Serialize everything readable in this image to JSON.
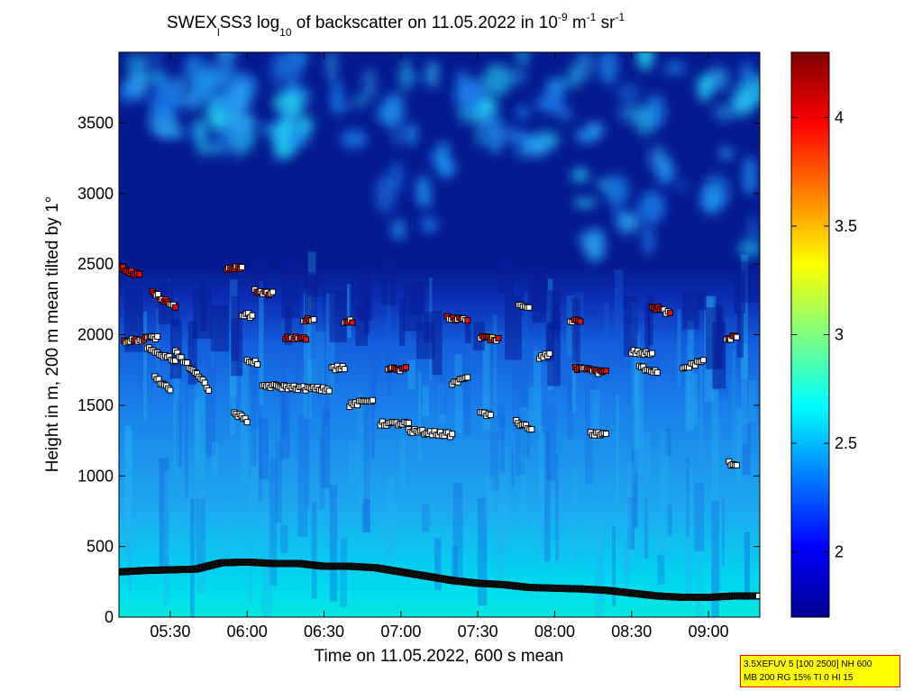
{
  "chart_data": {
    "type": "heatmap",
    "title": {
      "prefix": "SWEX",
      "sub1": "l",
      "mid": "SS3 log",
      "sub2": "10",
      "suffix": " of backscatter on 11.05.2022 in 10",
      "sup1": "-9",
      "unit1": " m",
      "sup2": "-1",
      "unit2": " sr",
      "sup3": "-1"
    },
    "xlabel": "Time on 11.05.2022, 600 s mean",
    "ylabel": "Height in m, 200 m mean tilted by 1°",
    "x_range_minutes": [
      310,
      560
    ],
    "x_ticks": [
      {
        "minute": 330,
        "label": "05:30"
      },
      {
        "minute": 360,
        "label": "06:00"
      },
      {
        "minute": 390,
        "label": "06:30"
      },
      {
        "minute": 420,
        "label": "07:00"
      },
      {
        "minute": 450,
        "label": "07:30"
      },
      {
        "minute": 480,
        "label": "08:00"
      },
      {
        "minute": 510,
        "label": "08:30"
      },
      {
        "minute": 540,
        "label": "09:00"
      }
    ],
    "y_range_m": [
      0,
      4000
    ],
    "y_ticks": [
      0,
      500,
      1000,
      1500,
      2000,
      2500,
      3000,
      3500
    ],
    "colorbar": {
      "range": [
        1.7,
        4.3
      ],
      "ticks": [
        2,
        2.5,
        3,
        3.5,
        4
      ]
    },
    "boundary_layer_top_m": [
      [
        310,
        320
      ],
      [
        320,
        330
      ],
      [
        330,
        335
      ],
      [
        340,
        340
      ],
      [
        350,
        385
      ],
      [
        360,
        390
      ],
      [
        370,
        380
      ],
      [
        380,
        380
      ],
      [
        390,
        360
      ],
      [
        400,
        360
      ],
      [
        410,
        350
      ],
      [
        420,
        320
      ],
      [
        430,
        290
      ],
      [
        440,
        260
      ],
      [
        450,
        240
      ],
      [
        460,
        230
      ],
      [
        470,
        210
      ],
      [
        480,
        205
      ],
      [
        490,
        200
      ],
      [
        500,
        190
      ],
      [
        510,
        170
      ],
      [
        520,
        150
      ],
      [
        530,
        140
      ],
      [
        540,
        140
      ],
      [
        550,
        150
      ],
      [
        560,
        150
      ]
    ],
    "layer_segments": [
      {
        "t": [
          310,
          318
        ],
        "h": [
          2480,
          2420
        ],
        "mix": "red"
      },
      {
        "t": [
          312,
          325
        ],
        "h": [
          1950,
          1980
        ],
        "mix": "mixed"
      },
      {
        "t": [
          321,
          332
        ],
        "h": [
          1900,
          1820
        ],
        "mix": "white"
      },
      {
        "t": [
          323,
          332
        ],
        "h": [
          2300,
          2190
        ],
        "mix": "mixed"
      },
      {
        "t": [
          324,
          330
        ],
        "h": [
          1700,
          1600
        ],
        "mix": "white"
      },
      {
        "t": [
          332,
          345
        ],
        "h": [
          1880,
          1620
        ],
        "mix": "white"
      },
      {
        "t": [
          352,
          358
        ],
        "h": [
          2470,
          2480
        ],
        "mix": "red"
      },
      {
        "t": [
          355,
          360
        ],
        "h": [
          1450,
          1390
        ],
        "mix": "white"
      },
      {
        "t": [
          358,
          362
        ],
        "h": [
          2150,
          2130
        ],
        "mix": "white"
      },
      {
        "t": [
          360,
          364
        ],
        "h": [
          1820,
          1800
        ],
        "mix": "white"
      },
      {
        "t": [
          363,
          370
        ],
        "h": [
          2310,
          2290
        ],
        "mix": "red"
      },
      {
        "t": [
          366,
          392
        ],
        "h": [
          1640,
          1610
        ],
        "mix": "white"
      },
      {
        "t": [
          375,
          383
        ],
        "h": [
          1970,
          1980
        ],
        "mix": "red"
      },
      {
        "t": [
          382,
          386
        ],
        "h": [
          2110,
          2100
        ],
        "mix": "red"
      },
      {
        "t": [
          393,
          398
        ],
        "h": [
          1760,
          1770
        ],
        "mix": "white"
      },
      {
        "t": [
          398,
          401
        ],
        "h": [
          2100,
          2100
        ],
        "mix": "red"
      },
      {
        "t": [
          400,
          409
        ],
        "h": [
          1500,
          1540
        ],
        "mix": "white"
      },
      {
        "t": [
          412,
          423
        ],
        "h": [
          1370,
          1370
        ],
        "mix": "white"
      },
      {
        "t": [
          415,
          422
        ],
        "h": [
          1750,
          1760
        ],
        "mix": "red"
      },
      {
        "t": [
          423,
          440
        ],
        "h": [
          1320,
          1290
        ],
        "mix": "white"
      },
      {
        "t": [
          438,
          446
        ],
        "h": [
          2120,
          2100
        ],
        "mix": "red"
      },
      {
        "t": [
          440,
          446
        ],
        "h": [
          1660,
          1690
        ],
        "mix": "white"
      },
      {
        "t": [
          451,
          458
        ],
        "h": [
          1980,
          1960
        ],
        "mix": "mixed"
      },
      {
        "t": [
          451,
          455
        ],
        "h": [
          1450,
          1430
        ],
        "mix": "white"
      },
      {
        "t": [
          466,
          470
        ],
        "h": [
          2200,
          2200
        ],
        "mix": "white"
      },
      {
        "t": [
          465,
          471
        ],
        "h": [
          1380,
          1330
        ],
        "mix": "white"
      },
      {
        "t": [
          474,
          478
        ],
        "h": [
          1830,
          1870
        ],
        "mix": "white"
      },
      {
        "t": [
          486,
          490
        ],
        "h": [
          2090,
          2090
        ],
        "mix": "red"
      },
      {
        "t": [
          488,
          500
        ],
        "h": [
          1760,
          1730
        ],
        "mix": "red"
      },
      {
        "t": [
          494,
          500
        ],
        "h": [
          1300,
          1300
        ],
        "mix": "white"
      },
      {
        "t": [
          510,
          518
        ],
        "h": [
          1880,
          1860
        ],
        "mix": "white"
      },
      {
        "t": [
          513,
          520
        ],
        "h": [
          1770,
          1740
        ],
        "mix": "white"
      },
      {
        "t": [
          518,
          525
        ],
        "h": [
          2200,
          2150
        ],
        "mix": "red"
      },
      {
        "t": [
          530,
          538
        ],
        "h": [
          1760,
          1820
        ],
        "mix": "white"
      },
      {
        "t": [
          547,
          551
        ],
        "h": [
          1970,
          1990
        ],
        "mix": "red"
      },
      {
        "t": [
          548,
          551
        ],
        "h": [
          1090,
          1080
        ],
        "mix": "white"
      }
    ]
  },
  "info_box": {
    "line1": "3.5XEFUV 5 [100 2500] NH 600",
    "line2": "MB 200 RG 15% TI 0 HI 15"
  }
}
